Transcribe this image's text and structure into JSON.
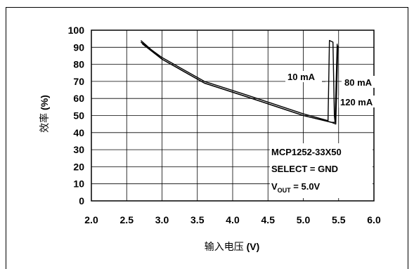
{
  "chart_data": {
    "type": "line",
    "xlabel": {
      "cjk": "输入电压",
      "unit": " (V)"
    },
    "ylabel": {
      "cjk": "效率",
      "unit": " (%)"
    },
    "xlim": [
      2.0,
      6.0
    ],
    "ylim": [
      0,
      100
    ],
    "x_ticks": [
      "2.0",
      "2.5",
      "3.0",
      "3.5",
      "4.0",
      "4.5",
      "5.0",
      "5.5",
      "6.0"
    ],
    "y_ticks": [
      "0",
      "10",
      "20",
      "30",
      "40",
      "50",
      "60",
      "70",
      "80",
      "90",
      "100"
    ],
    "grid": true,
    "series": [
      {
        "name": "10 mA",
        "points": [
          [
            2.7,
            93
          ],
          [
            3.0,
            84
          ],
          [
            3.6,
            70
          ],
          [
            4.2,
            62
          ],
          [
            5.0,
            51
          ],
          [
            5.35,
            47
          ],
          [
            5.37,
            94
          ],
          [
            5.42,
            93
          ],
          [
            5.44,
            50
          ],
          [
            5.45,
            46
          ]
        ]
      },
      {
        "name": "80 mA",
        "points": [
          [
            2.7,
            94
          ],
          [
            3.0,
            83
          ],
          [
            3.6,
            69
          ],
          [
            4.2,
            61
          ],
          [
            5.0,
            50
          ],
          [
            5.4,
            46
          ],
          [
            5.45,
            46
          ],
          [
            5.48,
            92
          ]
        ]
      },
      {
        "name": "120 mA",
        "points": [
          [
            2.72,
            92
          ],
          [
            3.0,
            83
          ],
          [
            3.6,
            69
          ],
          [
            4.2,
            61
          ],
          [
            5.0,
            50
          ],
          [
            5.4,
            46
          ],
          [
            5.46,
            45
          ],
          [
            5.49,
            91
          ]
        ]
      }
    ],
    "annotations": {
      "label_10": "10 mA",
      "label_80": "80 mA",
      "label_120": "120 mA",
      "part_number": "MCP1252-33X50",
      "select": "SELECT = GND",
      "vout_v": "V",
      "vout_sub": "OUT",
      "vout_rest": " = 5.0V"
    }
  }
}
